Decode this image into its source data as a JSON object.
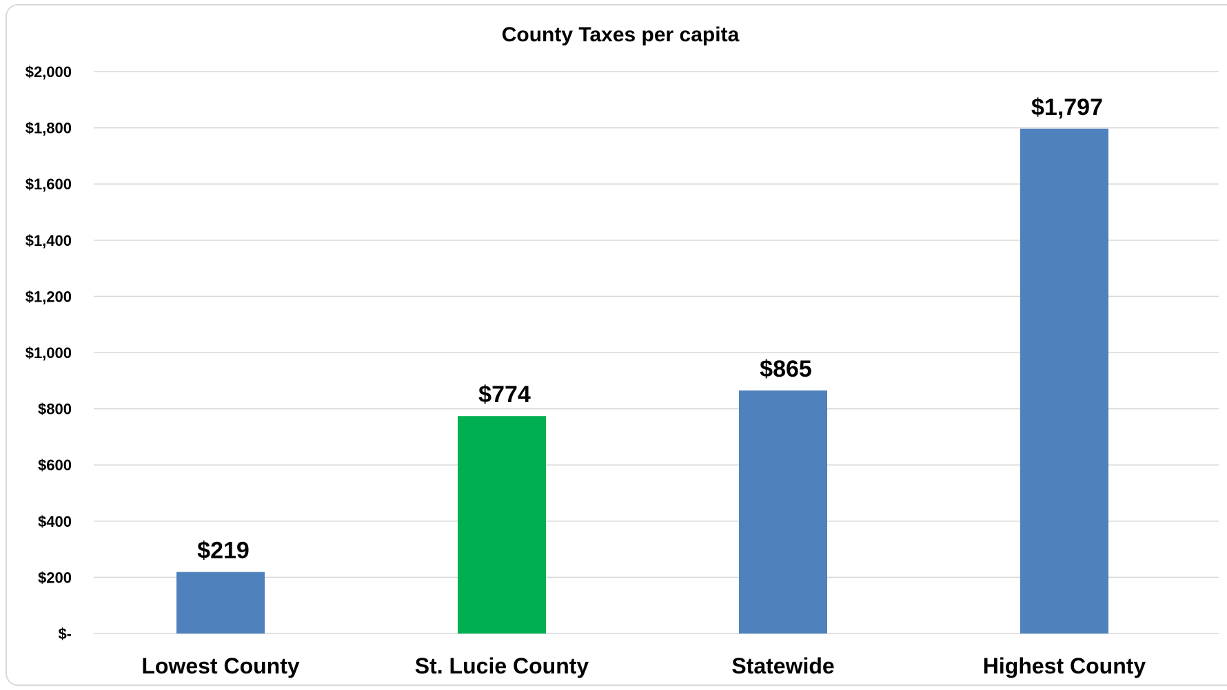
{
  "chart_data": {
    "type": "bar",
    "title": "County Taxes per capita",
    "xlabel": "",
    "ylabel": "",
    "categories": [
      "Lowest County",
      "St. Lucie County",
      "Statewide",
      "Highest County"
    ],
    "values": [
      219,
      774,
      865,
      1797
    ],
    "data_labels": [
      "$219",
      "$774",
      "$865",
      "$1,797"
    ],
    "bar_colors": [
      "#4f81bd",
      "#00b050",
      "#4f81bd",
      "#4f81bd"
    ],
    "ylim": [
      0,
      2000
    ],
    "yticks": [
      0,
      200,
      400,
      600,
      800,
      1000,
      1200,
      1400,
      1600,
      1800,
      2000
    ],
    "ytick_labels": [
      "$-",
      "$200",
      "$400",
      "$600",
      "$800",
      "$1,000",
      "$1,200",
      "$1,400",
      "$1,600",
      "$1,800",
      "$2,000"
    ],
    "grid": true,
    "legend": "none"
  }
}
